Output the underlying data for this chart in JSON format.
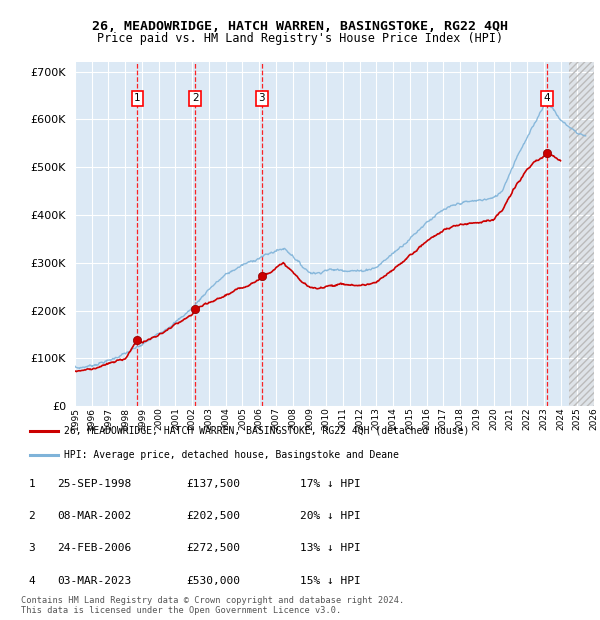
{
  "title": "26, MEADOWRIDGE, HATCH WARREN, BASINGSTOKE, RG22 4QH",
  "subtitle": "Price paid vs. HM Land Registry's House Price Index (HPI)",
  "ylim": [
    0,
    720000
  ],
  "yticks": [
    0,
    100000,
    200000,
    300000,
    400000,
    500000,
    600000,
    700000
  ],
  "ytick_labels": [
    "£0",
    "£100K",
    "£200K",
    "£300K",
    "£400K",
    "£500K",
    "£600K",
    "£700K"
  ],
  "plot_bg": "#dce9f5",
  "grid_color": "#ffffff",
  "hpi_color": "#7fb3d9",
  "price_color": "#cc0000",
  "sale_years": [
    1998.73,
    2002.18,
    2006.15,
    2023.17
  ],
  "sale_prices": [
    137500,
    202500,
    272500,
    530000
  ],
  "sale_labels": [
    {
      "num": "1",
      "date": "25-SEP-1998",
      "price": "£137,500",
      "hpi": "17% ↓ HPI"
    },
    {
      "num": "2",
      "date": "08-MAR-2002",
      "price": "£202,500",
      "hpi": "20% ↓ HPI"
    },
    {
      "num": "3",
      "date": "24-FEB-2006",
      "price": "£272,500",
      "hpi": "13% ↓ HPI"
    },
    {
      "num": "4",
      "date": "03-MAR-2023",
      "price": "£530,000",
      "hpi": "15% ↓ HPI"
    }
  ],
  "legend_line1": "26, MEADOWRIDGE, HATCH WARREN, BASINGSTOKE, RG22 4QH (detached house)",
  "legend_line2": "HPI: Average price, detached house, Basingstoke and Deane",
  "footer": "Contains HM Land Registry data © Crown copyright and database right 2024.\nThis data is licensed under the Open Government Licence v3.0.",
  "xmin": 1995,
  "xmax": 2026,
  "future_start": 2024.5
}
